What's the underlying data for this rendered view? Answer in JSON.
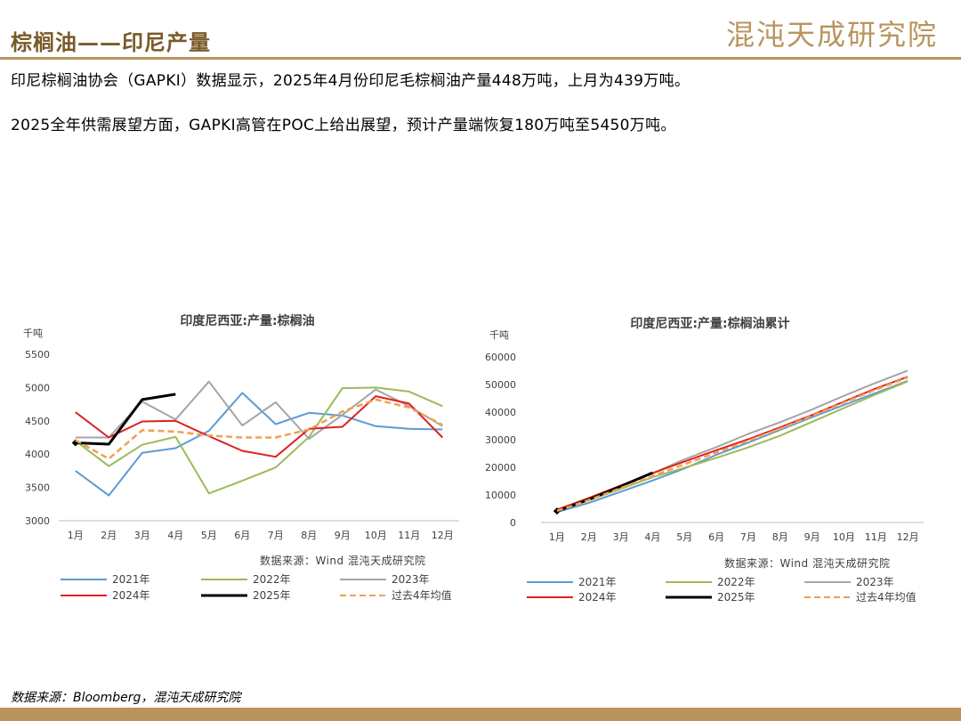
{
  "header": {
    "title": "棕榈油——印尼产量",
    "logo_text": "混沌天成研究院",
    "accent_color": "#b8955e"
  },
  "paragraphs": [
    "印尼棕榈油协会（GAPKI）数据显示，2025年4月份印尼毛棕榈油产量448万吨，上月为439万吨。",
    "2025全年供需展望方面，GAPKI高管在POC上给出展望，预计产量端恢复180万吨至5450万吨。"
  ],
  "footer": {
    "source": "数据来源：Bloomberg，混沌天成研究院"
  },
  "chart_data": [
    {
      "type": "line",
      "title": "印度尼西亚:产量:棕榈油",
      "ylabel": "千吨",
      "source": "数据来源：Wind  混沌天成研究院",
      "categories": [
        "1月",
        "2月",
        "3月",
        "4月",
        "5月",
        "6月",
        "7月",
        "8月",
        "9月",
        "10月",
        "11月",
        "12月"
      ],
      "ylim": [
        3000,
        5500
      ],
      "yticks": [
        3000,
        3500,
        4000,
        4500,
        5000,
        5500
      ],
      "series": [
        {
          "name": "2021年",
          "color": "#5b9bd5",
          "dash": false,
          "values": [
            3750,
            3380,
            4020,
            4090,
            4350,
            4920,
            4450,
            4620,
            4580,
            4420,
            4380,
            4370
          ]
        },
        {
          "name": "2022年",
          "color": "#9bbb59",
          "dash": false,
          "values": [
            4200,
            3820,
            4140,
            4260,
            3410,
            3600,
            3800,
            4260,
            4990,
            5000,
            4940,
            4720
          ]
        },
        {
          "name": "2023年",
          "color": "#a5a5a5",
          "dash": false,
          "values": [
            4250,
            4250,
            4790,
            4520,
            5090,
            4430,
            4780,
            4230,
            4590,
            4970,
            4720,
            4420
          ]
        },
        {
          "name": "2024年",
          "color": "#e02020",
          "dash": false,
          "values": [
            4630,
            4250,
            4490,
            4500,
            4270,
            4050,
            3960,
            4380,
            4410,
            4870,
            4760,
            4250
          ]
        },
        {
          "name": "2025年",
          "color": "#000000",
          "dash": false,
          "values": [
            4170,
            4150,
            4820,
            4900,
            null,
            null,
            null,
            null,
            null,
            null,
            null,
            null
          ]
        },
        {
          "name": "过去4年均值",
          "color": "#f0a050",
          "dash": true,
          "values": [
            4210,
            3930,
            4360,
            4340,
            4280,
            4250,
            4250,
            4370,
            4640,
            4820,
            4700,
            4440
          ]
        }
      ]
    },
    {
      "type": "line",
      "title": "印度尼西亚:产量:棕榈油累计",
      "ylabel": "千吨",
      "source": "数据来源：Wind  混沌天成研究院",
      "categories": [
        "1月",
        "2月",
        "3月",
        "4月",
        "5月",
        "6月",
        "7月",
        "8月",
        "9月",
        "10月",
        "11月",
        "12月"
      ],
      "ylim": [
        0,
        60000
      ],
      "yticks": [
        0,
        10000,
        20000,
        30000,
        40000,
        50000,
        60000
      ],
      "series": [
        {
          "name": "2021年",
          "color": "#5b9bd5",
          "dash": false,
          "values": [
            3750,
            7130,
            11150,
            15240,
            19590,
            24510,
            28960,
            33580,
            38160,
            42580,
            46960,
            51330
          ]
        },
        {
          "name": "2022年",
          "color": "#9bbb59",
          "dash": false,
          "values": [
            4200,
            8020,
            12160,
            16420,
            19830,
            23430,
            27230,
            31490,
            36480,
            41480,
            46420,
            51140
          ]
        },
        {
          "name": "2023年",
          "color": "#a5a5a5",
          "dash": false,
          "values": [
            4250,
            8500,
            13290,
            17810,
            22900,
            27330,
            32110,
            36340,
            40930,
            45900,
            50620,
            55040
          ]
        },
        {
          "name": "2024年",
          "color": "#e02020",
          "dash": false,
          "values": [
            4630,
            8880,
            13370,
            17870,
            22140,
            26190,
            30150,
            34530,
            38940,
            43810,
            48570,
            52820
          ]
        },
        {
          "name": "2025年",
          "color": "#000000",
          "dash": false,
          "values": [
            4170,
            8320,
            13140,
            18040,
            null,
            null,
            null,
            null,
            null,
            null,
            null,
            null
          ]
        },
        {
          "name": "过去4年均值",
          "color": "#f0a050",
          "dash": true,
          "values": [
            4210,
            8140,
            12500,
            16840,
            21120,
            25370,
            29620,
            33990,
            38630,
            43450,
            48150,
            52590
          ]
        }
      ]
    }
  ]
}
